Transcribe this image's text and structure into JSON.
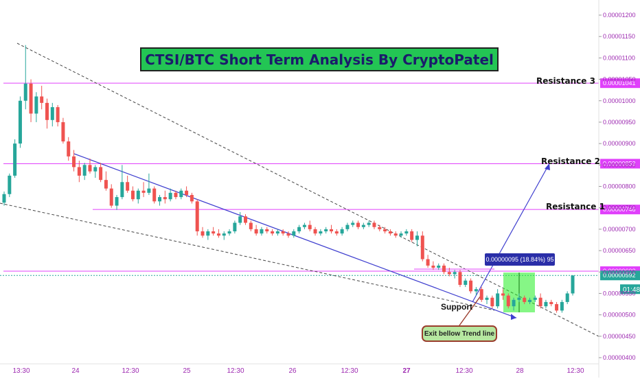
{
  "title": "CTSI/BTC Short Term Analysis By CryptoPatel",
  "resistance_labels": {
    "r3": "Resistance 3",
    "r2": "Resistance 2",
    "r1": "Resistance 1"
  },
  "support_label": "Support",
  "exit_note": "Exit bellow Trend line",
  "measure_label": "0.00000095 (18.84%) 95",
  "timer_label": "01:48",
  "colors": {
    "up": "#26a69a",
    "down": "#ef5350",
    "level": "#e040fb",
    "trend": "#3f3fcf",
    "axis": "#9c27b0",
    "title_bg": "#23c554",
    "measure_zone": "#22ee22"
  },
  "chart_data": {
    "type": "candlestick",
    "title": "CTSI/BTC Short Term Analysis By CryptoPatel",
    "ylim": [
      3.96e-06,
      1.227e-05
    ],
    "y_ticks": [
      "0.00001200",
      "0.00001150",
      "0.00001100",
      "0.00001050",
      "0.00001000",
      "0.00000950",
      "0.00000900",
      "0.00000850",
      "0.00000800",
      "0.00000750",
      "0.00000700",
      "0.00000650",
      "0.00000600",
      "0.00000550",
      "0.00000500",
      "0.00000450",
      "0.00000400"
    ],
    "x_ticks": [
      "13:30",
      "24",
      "12:30",
      "25",
      "12:30",
      "26",
      "12:30",
      "27",
      "12:30",
      "28",
      "12:30"
    ],
    "levels": [
      {
        "name": "Resistance 3",
        "value": "0.00001041"
      },
      {
        "name": "Resistance 2",
        "value": "0.00000853"
      },
      {
        "name": "Resistance 1",
        "value": "0.00000746"
      },
      {
        "name": "",
        "value": "0.00000602"
      }
    ],
    "current_price": "0.00000592",
    "measure": {
      "change": "0.00000095",
      "percent": "18.84%",
      "bars": "95"
    },
    "candles": [
      [
        7.62,
        7.88,
        7.55,
        7.82
      ],
      [
        7.82,
        8.3,
        7.75,
        8.25
      ],
      [
        8.25,
        9.1,
        8.2,
        9.0
      ],
      [
        9.0,
        10.1,
        8.9,
        10.0
      ],
      [
        10.0,
        11.3,
        9.8,
        10.4
      ],
      [
        10.4,
        10.5,
        9.5,
        9.7
      ],
      [
        9.7,
        10.2,
        9.5,
        10.1
      ],
      [
        10.1,
        10.35,
        9.8,
        9.95
      ],
      [
        9.95,
        10.05,
        9.35,
        9.55
      ],
      [
        9.55,
        9.95,
        9.4,
        9.85
      ],
      [
        9.85,
        9.9,
        9.4,
        9.5
      ],
      [
        9.5,
        9.6,
        9.0,
        9.05
      ],
      [
        9.05,
        9.15,
        8.6,
        8.7
      ],
      [
        8.7,
        8.85,
        8.35,
        8.45
      ],
      [
        8.45,
        8.6,
        8.1,
        8.25
      ],
      [
        8.25,
        8.55,
        8.15,
        8.5
      ],
      [
        8.5,
        8.65,
        8.3,
        8.35
      ],
      [
        8.35,
        8.5,
        8.2,
        8.45
      ],
      [
        8.45,
        8.55,
        8.1,
        8.15
      ],
      [
        8.15,
        8.35,
        7.9,
        7.95
      ],
      [
        7.95,
        8.05,
        7.5,
        7.55
      ],
      [
        7.55,
        7.8,
        7.45,
        7.75
      ],
      [
        7.75,
        8.5,
        7.7,
        8.1
      ],
      [
        8.1,
        8.25,
        7.85,
        7.9
      ],
      [
        7.9,
        8.0,
        7.65,
        7.7
      ],
      [
        7.7,
        7.95,
        7.6,
        7.9
      ],
      [
        7.9,
        8.1,
        7.75,
        7.85
      ],
      [
        7.85,
        8.3,
        7.8,
        7.95
      ],
      [
        7.95,
        8.0,
        7.6,
        7.65
      ],
      [
        7.65,
        7.8,
        7.55,
        7.75
      ],
      [
        7.75,
        7.9,
        7.6,
        7.7
      ],
      [
        7.7,
        7.95,
        7.65,
        7.85
      ],
      [
        7.85,
        7.9,
        7.7,
        7.75
      ],
      [
        7.75,
        7.95,
        7.7,
        7.9
      ],
      [
        7.9,
        8.0,
        7.75,
        7.8
      ],
      [
        7.8,
        7.85,
        7.6,
        7.65
      ],
      [
        7.65,
        7.7,
        6.85,
        6.95
      ],
      [
        6.95,
        7.05,
        6.8,
        6.85
      ],
      [
        6.85,
        7.0,
        6.75,
        6.95
      ],
      [
        6.95,
        7.05,
        6.85,
        6.9
      ],
      [
        6.9,
        7.0,
        6.8,
        6.85
      ],
      [
        6.85,
        6.95,
        6.75,
        6.9
      ],
      [
        6.9,
        7.0,
        6.85,
        6.95
      ],
      [
        6.95,
        7.2,
        6.9,
        7.15
      ],
      [
        7.15,
        7.4,
        7.1,
        7.3
      ],
      [
        7.3,
        7.35,
        7.1,
        7.15
      ],
      [
        7.15,
        7.2,
        6.95,
        7.0
      ],
      [
        7.0,
        7.1,
        6.85,
        6.9
      ],
      [
        6.9,
        7.05,
        6.85,
        7.0
      ],
      [
        7.0,
        7.05,
        6.9,
        6.95
      ],
      [
        6.95,
        7.0,
        6.85,
        6.9
      ],
      [
        6.9,
        7.0,
        6.85,
        6.95
      ],
      [
        6.95,
        7.0,
        6.85,
        6.9
      ],
      [
        6.9,
        6.95,
        6.8,
        6.85
      ],
      [
        6.85,
        7.0,
        6.8,
        6.95
      ],
      [
        6.95,
        7.1,
        6.9,
        7.05
      ],
      [
        7.05,
        7.15,
        7.0,
        7.1
      ],
      [
        7.1,
        7.2,
        6.95,
        7.0
      ],
      [
        7.0,
        7.05,
        6.85,
        6.9
      ],
      [
        6.9,
        7.0,
        6.85,
        6.95
      ],
      [
        6.95,
        7.05,
        6.9,
        7.0
      ],
      [
        7.0,
        7.1,
        6.9,
        6.95
      ],
      [
        6.95,
        7.0,
        6.85,
        6.9
      ],
      [
        6.9,
        7.05,
        6.85,
        7.0
      ],
      [
        7.0,
        7.15,
        6.95,
        7.1
      ],
      [
        7.1,
        7.2,
        7.05,
        7.15
      ],
      [
        7.15,
        7.2,
        7.0,
        7.05
      ],
      [
        7.05,
        7.15,
        7.0,
        7.1
      ],
      [
        7.1,
        7.2,
        7.05,
        7.15
      ],
      [
        7.15,
        7.2,
        7.0,
        7.05
      ],
      [
        7.05,
        7.1,
        6.95,
        7.0
      ],
      [
        7.0,
        7.05,
        6.9,
        6.95
      ],
      [
        6.95,
        7.0,
        6.85,
        6.9
      ],
      [
        6.9,
        6.95,
        6.8,
        6.85
      ],
      [
        6.85,
        6.95,
        6.8,
        6.9
      ],
      [
        6.9,
        7.0,
        6.85,
        6.95
      ],
      [
        6.95,
        7.0,
        6.7,
        6.75
      ],
      [
        6.75,
        6.95,
        6.6,
        6.85
      ],
      [
        6.85,
        6.95,
        6.25,
        6.3
      ],
      [
        6.3,
        6.4,
        6.1,
        6.15
      ],
      [
        6.15,
        6.25,
        6.05,
        6.1
      ],
      [
        6.1,
        6.2,
        6.05,
        6.15
      ],
      [
        6.15,
        6.2,
        5.95,
        6.0
      ],
      [
        6.0,
        6.1,
        5.9,
        5.95
      ],
      [
        5.95,
        6.05,
        5.85,
        6.0
      ],
      [
        6.0,
        6.05,
        5.65,
        5.7
      ],
      [
        5.7,
        5.85,
        5.65,
        5.8
      ],
      [
        5.8,
        5.85,
        5.5,
        5.55
      ],
      [
        5.55,
        5.65,
        5.45,
        5.6
      ],
      [
        5.6,
        5.65,
        5.3,
        5.35
      ],
      [
        5.35,
        5.45,
        5.25,
        5.4
      ],
      [
        5.4,
        5.45,
        5.15,
        5.2
      ],
      [
        5.2,
        5.6,
        5.15,
        5.5
      ],
      [
        5.5,
        5.6,
        5.35,
        5.45
      ],
      [
        5.45,
        5.5,
        5.15,
        5.2
      ],
      [
        5.2,
        5.4,
        5.1,
        5.35
      ],
      [
        5.35,
        5.5,
        5.3,
        5.4
      ],
      [
        5.4,
        5.45,
        5.25,
        5.3
      ],
      [
        5.3,
        5.4,
        5.25,
        5.35
      ],
      [
        5.35,
        5.45,
        5.3,
        5.4
      ],
      [
        5.4,
        5.5,
        5.15,
        5.2
      ],
      [
        5.2,
        5.35,
        5.15,
        5.3
      ],
      [
        5.3,
        5.35,
        5.2,
        5.25
      ],
      [
        5.25,
        5.3,
        5.05,
        5.1
      ],
      [
        5.1,
        5.35,
        5.05,
        5.3
      ],
      [
        5.3,
        5.55,
        5.25,
        5.5
      ],
      [
        5.5,
        5.92,
        5.45,
        5.92
      ]
    ]
  }
}
